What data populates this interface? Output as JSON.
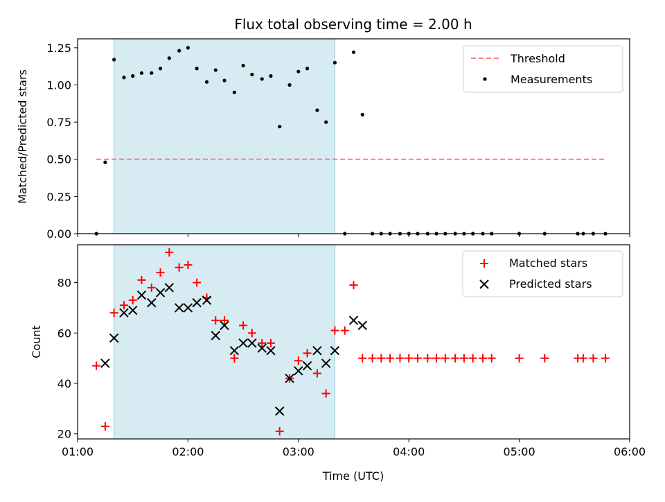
{
  "chart_data": [
    {
      "type": "scatter",
      "title": "Flux total observing time = 2.00 h",
      "xlabel": "",
      "ylabel": "Matched/Predicted stars",
      "x_unit": "hours UTC",
      "xlim": [
        1.0,
        6.0
      ],
      "ylim": [
        0.0,
        1.31
      ],
      "yticks": [
        0.0,
        0.25,
        0.5,
        0.75,
        1.0,
        1.25
      ],
      "ytick_labels": [
        "0.00",
        "0.25",
        "0.50",
        "0.75",
        "1.00",
        "1.25"
      ],
      "shaded_interval": [
        1.33,
        3.33
      ],
      "legend": {
        "placement": "top-right",
        "entries": [
          "Threshold",
          "Measurements"
        ]
      },
      "threshold": {
        "name": "Threshold",
        "value": 0.5,
        "x_range": [
          1.17,
          5.78
        ],
        "color": "#ff7f7f",
        "style": "dashed"
      },
      "series": [
        {
          "name": "Measurements",
          "marker": "dot",
          "color": "#000000",
          "x": [
            1.17,
            1.25,
            1.33,
            1.42,
            1.5,
            1.58,
            1.67,
            1.75,
            1.83,
            1.92,
            2.0,
            2.08,
            2.17,
            2.25,
            2.33,
            2.42,
            2.5,
            2.58,
            2.67,
            2.75,
            2.83,
            2.92,
            3.0,
            3.08,
            3.17,
            3.25,
            3.33,
            3.42,
            3.5,
            3.58,
            3.67,
            3.75,
            3.83,
            3.92,
            4.0,
            4.08,
            4.17,
            4.25,
            4.33,
            4.42,
            4.5,
            4.58,
            4.67,
            4.75,
            5.0,
            5.23,
            5.53,
            5.58,
            5.67,
            5.78
          ],
          "y": [
            0.0,
            0.48,
            1.17,
            1.05,
            1.06,
            1.08,
            1.08,
            1.11,
            1.18,
            1.23,
            1.25,
            1.11,
            1.02,
            1.1,
            1.03,
            0.95,
            1.13,
            1.07,
            1.04,
            1.06,
            0.72,
            1.0,
            1.09,
            1.11,
            0.83,
            0.75,
            1.15,
            0.0,
            1.22,
            0.8,
            0.0,
            0.0,
            0.0,
            0.0,
            0.0,
            0.0,
            0.0,
            0.0,
            0.0,
            0.0,
            0.0,
            0.0,
            0.0,
            0.0,
            0.0,
            0.0,
            0.0,
            0.0,
            0.0,
            0.0
          ]
        }
      ]
    },
    {
      "type": "scatter",
      "title": "",
      "xlabel": "Time (UTC)",
      "ylabel": "Count",
      "x_unit": "hours UTC",
      "xlim": [
        1.0,
        6.0
      ],
      "ylim": [
        18,
        95
      ],
      "yticks": [
        20,
        40,
        60,
        80
      ],
      "ytick_labels": [
        "20",
        "40",
        "60",
        "80"
      ],
      "xticks": [
        1,
        2,
        3,
        4,
        5,
        6
      ],
      "xtick_labels": [
        "01:00",
        "02:00",
        "03:00",
        "04:00",
        "05:00",
        "06:00"
      ],
      "shaded_interval": [
        1.33,
        3.33
      ],
      "legend": {
        "placement": "top-right",
        "entries": [
          "Matched stars",
          "Predicted stars"
        ]
      },
      "series": [
        {
          "name": "Matched stars",
          "marker": "plus",
          "color": "#ff0000",
          "x": [
            1.17,
            1.25,
            1.33,
            1.42,
            1.5,
            1.58,
            1.67,
            1.75,
            1.83,
            1.92,
            2.0,
            2.08,
            2.17,
            2.25,
            2.33,
            2.42,
            2.5,
            2.58,
            2.67,
            2.75,
            2.83,
            2.92,
            3.0,
            3.08,
            3.17,
            3.25,
            3.33,
            3.42,
            3.5,
            3.58,
            3.67,
            3.75,
            3.83,
            3.92,
            4.0,
            4.08,
            4.17,
            4.25,
            4.33,
            4.42,
            4.5,
            4.58,
            4.67,
            4.75,
            5.0,
            5.23,
            5.53,
            5.58,
            5.67,
            5.78
          ],
          "y": [
            47,
            23,
            68,
            71,
            73,
            81,
            78,
            84,
            92,
            86,
            87,
            80,
            74,
            65,
            65,
            50,
            63,
            60,
            56,
            56,
            21,
            42,
            49,
            52,
            44,
            36,
            61,
            61,
            79,
            50,
            50,
            50,
            50,
            50,
            50,
            50,
            50,
            50,
            50,
            50,
            50,
            50,
            50,
            50,
            50,
            50,
            50,
            50,
            50,
            50
          ]
        },
        {
          "name": "Predicted stars",
          "marker": "x",
          "color": "#000000",
          "x": [
            1.25,
            1.33,
            1.42,
            1.5,
            1.58,
            1.67,
            1.75,
            1.83,
            1.92,
            2.0,
            2.08,
            2.17,
            2.25,
            2.33,
            2.42,
            2.5,
            2.58,
            2.67,
            2.75,
            2.83,
            2.92,
            3.0,
            3.08,
            3.17,
            3.25,
            3.33,
            3.5,
            3.58
          ],
          "y": [
            48,
            58,
            68,
            69,
            75,
            72,
            76,
            78,
            70,
            70,
            72,
            73,
            59,
            63,
            53,
            56,
            56,
            54,
            53,
            29,
            42,
            45,
            47,
            53,
            48,
            53,
            65,
            63
          ]
        }
      ]
    }
  ],
  "colors": {
    "shade": "#add8e6",
    "threshold": "#ff7f7f",
    "matched": "#ff0000",
    "predicted": "#000000"
  }
}
